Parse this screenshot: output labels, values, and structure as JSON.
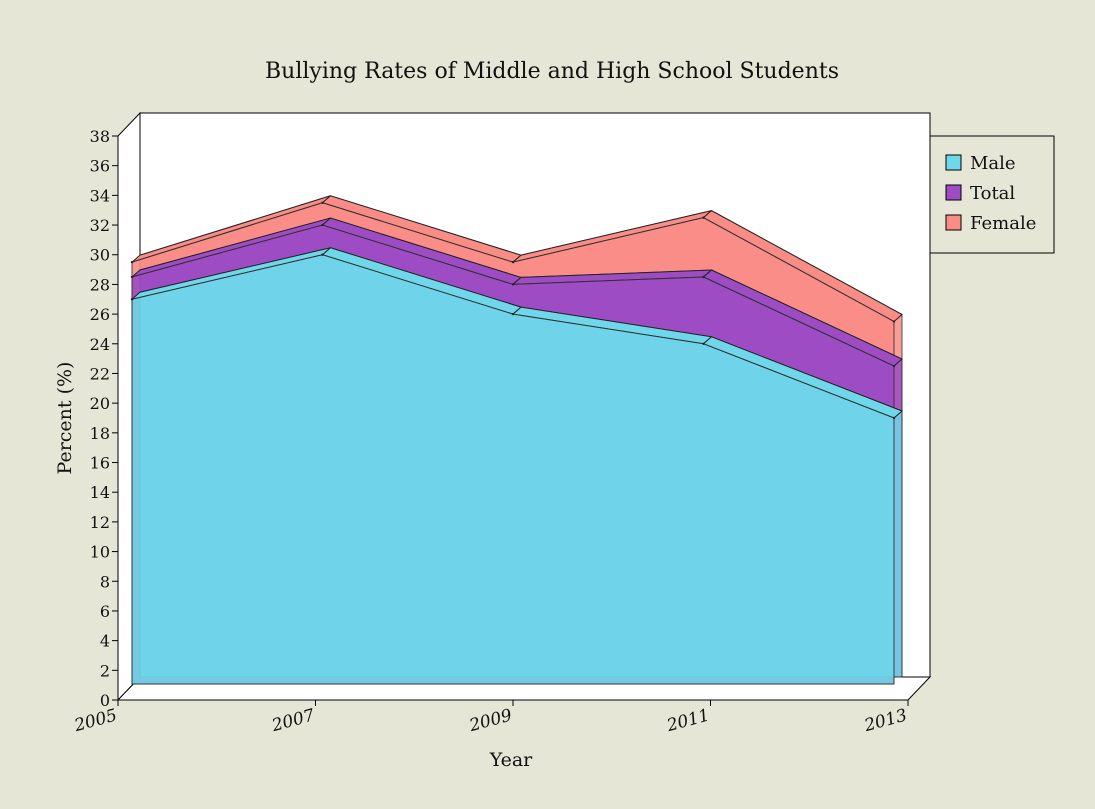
{
  "chart_data": {
    "type": "area",
    "title": "Bullying Rates of Middle and High School Students",
    "xlabel": "Year",
    "ylabel": "Percent (%)",
    "x": [
      "2005",
      "2007",
      "2009",
      "2011",
      "2013"
    ],
    "ylim": [
      0,
      38
    ],
    "yticks": [
      0,
      2,
      4,
      6,
      8,
      10,
      12,
      14,
      16,
      18,
      20,
      22,
      24,
      26,
      28,
      30,
      32,
      34,
      36,
      38
    ],
    "grid": false,
    "legend_position": "top-right",
    "three_d": true,
    "series": [
      {
        "name": "Male",
        "values": [
          27,
          30,
          26,
          24,
          19
        ],
        "color": "#6fd7ea"
      },
      {
        "name": "Total",
        "values": [
          28.5,
          32,
          28,
          28.5,
          22.5
        ],
        "color": "#9d4cc4"
      },
      {
        "name": "Female",
        "values": [
          29.5,
          33.5,
          29.5,
          32.5,
          25.5
        ],
        "color": "#fa8c86"
      }
    ],
    "overlap_color": "#6683d2"
  }
}
